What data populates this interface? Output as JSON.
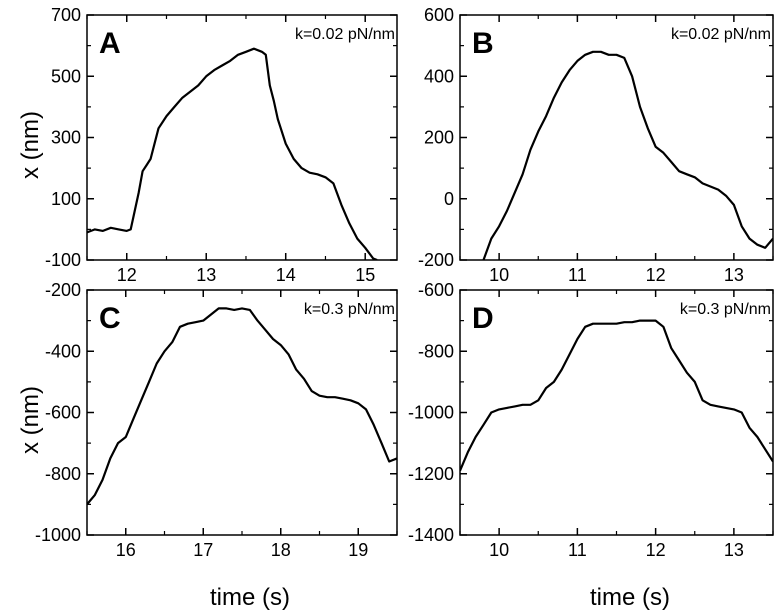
{
  "chart_data": [
    {
      "type": "line",
      "panel": "A",
      "annotation": "k=0.02 pN/nm",
      "ylabel": "x (nm)",
      "xlabel": "",
      "xlim": [
        11.5,
        15.4
      ],
      "ylim": [
        -100,
        700
      ],
      "xticks": [
        12,
        13,
        14,
        15
      ],
      "yticks": [
        -100,
        100,
        300,
        500,
        700
      ],
      "ytick_labels": [
        "-100",
        "100",
        "300",
        "500",
        "700"
      ],
      "series": [
        {
          "x": [
            11.5,
            11.6,
            11.7,
            11.8,
            11.9,
            12.0,
            12.05,
            12.1,
            12.15,
            12.2,
            12.25,
            12.3,
            12.4,
            12.5,
            12.6,
            12.7,
            12.8,
            12.9,
            13.0,
            13.1,
            13.2,
            13.3,
            13.4,
            13.5,
            13.6,
            13.7,
            13.75,
            13.8,
            13.85,
            13.9,
            14.0,
            14.1,
            14.2,
            14.3,
            14.4,
            14.5,
            14.6,
            14.7,
            14.8,
            14.9,
            15.0,
            15.1,
            15.15
          ],
          "y": [
            -10,
            0,
            -5,
            5,
            0,
            -5,
            0,
            60,
            120,
            190,
            210,
            230,
            330,
            370,
            400,
            430,
            450,
            470,
            500,
            520,
            535,
            550,
            570,
            580,
            590,
            580,
            570,
            470,
            420,
            360,
            280,
            230,
            200,
            185,
            180,
            170,
            150,
            80,
            20,
            -30,
            -60,
            -95,
            -100
          ]
        }
      ]
    },
    {
      "type": "line",
      "panel": "B",
      "annotation": "k=0.02 pN/nm",
      "ylabel": "",
      "xlabel": "",
      "xlim": [
        9.5,
        13.5
      ],
      "ylim": [
        -200,
        600
      ],
      "xticks": [
        10,
        11,
        12,
        13
      ],
      "yticks": [
        -200,
        0,
        200,
        400,
        600
      ],
      "ytick_labels": [
        "-200",
        "0",
        "200",
        "400",
        "600"
      ],
      "series": [
        {
          "x": [
            9.8,
            9.9,
            10.0,
            10.1,
            10.2,
            10.3,
            10.4,
            10.5,
            10.6,
            10.7,
            10.8,
            10.9,
            11.0,
            11.1,
            11.2,
            11.3,
            11.4,
            11.5,
            11.6,
            11.7,
            11.8,
            11.9,
            12.0,
            12.1,
            12.2,
            12.3,
            12.4,
            12.5,
            12.6,
            12.7,
            12.8,
            12.9,
            13.0,
            13.1,
            13.2,
            13.3,
            13.4,
            13.5
          ],
          "y": [
            -200,
            -130,
            -90,
            -40,
            20,
            80,
            160,
            220,
            270,
            330,
            380,
            420,
            450,
            470,
            480,
            480,
            470,
            470,
            460,
            400,
            300,
            230,
            170,
            150,
            120,
            90,
            80,
            70,
            50,
            40,
            30,
            10,
            -20,
            -90,
            -130,
            -150,
            -160,
            -130
          ]
        }
      ]
    },
    {
      "type": "line",
      "panel": "C",
      "annotation": "k=0.3 pN/nm",
      "ylabel": "x (nm)",
      "xlabel": "time (s)",
      "xlim": [
        15.5,
        19.5
      ],
      "ylim": [
        -1000,
        -200
      ],
      "xticks": [
        16,
        17,
        18,
        19
      ],
      "yticks": [
        -1000,
        -800,
        -600,
        -400,
        -200
      ],
      "ytick_labels": [
        "-1000",
        "-800",
        "-600",
        "-400",
        "-200"
      ],
      "series": [
        {
          "x": [
            15.5,
            15.6,
            15.7,
            15.8,
            15.9,
            16.0,
            16.1,
            16.2,
            16.3,
            16.4,
            16.5,
            16.6,
            16.7,
            16.8,
            16.9,
            17.0,
            17.1,
            17.2,
            17.3,
            17.4,
            17.5,
            17.6,
            17.7,
            17.8,
            17.9,
            18.0,
            18.1,
            18.2,
            18.3,
            18.4,
            18.5,
            18.6,
            18.7,
            18.8,
            18.9,
            19.0,
            19.1,
            19.2,
            19.3,
            19.4,
            19.5
          ],
          "y": [
            -900,
            -870,
            -820,
            -750,
            -700,
            -680,
            -620,
            -560,
            -500,
            -440,
            -400,
            -370,
            -320,
            -310,
            -305,
            -300,
            -280,
            -260,
            -260,
            -265,
            -260,
            -265,
            -300,
            -330,
            -360,
            -380,
            -410,
            -460,
            -490,
            -530,
            -545,
            -550,
            -550,
            -555,
            -560,
            -570,
            -590,
            -640,
            -700,
            -760,
            -750
          ]
        }
      ]
    },
    {
      "type": "line",
      "panel": "D",
      "annotation": "k=0.3 pN/nm",
      "ylabel": "",
      "xlabel": "time (s)",
      "xlim": [
        9.5,
        13.5
      ],
      "ylim": [
        -1400,
        -600
      ],
      "xticks": [
        10,
        11,
        12,
        13
      ],
      "yticks": [
        -1400,
        -1200,
        -1000,
        -800,
        -600
      ],
      "ytick_labels": [
        "-1400",
        "-1200",
        "-1000",
        "-800",
        "-600"
      ],
      "series": [
        {
          "x": [
            9.5,
            9.6,
            9.7,
            9.8,
            9.9,
            10.0,
            10.1,
            10.2,
            10.3,
            10.4,
            10.5,
            10.6,
            10.7,
            10.8,
            10.9,
            11.0,
            11.1,
            11.2,
            11.3,
            11.4,
            11.5,
            11.6,
            11.7,
            11.8,
            11.9,
            12.0,
            12.1,
            12.2,
            12.3,
            12.4,
            12.5,
            12.6,
            12.7,
            12.8,
            12.9,
            13.0,
            13.1,
            13.2,
            13.3,
            13.4,
            13.5
          ],
          "y": [
            -1190,
            -1130,
            -1080,
            -1040,
            -1000,
            -990,
            -985,
            -980,
            -975,
            -975,
            -960,
            -920,
            -900,
            -860,
            -810,
            -760,
            -720,
            -710,
            -710,
            -710,
            -710,
            -705,
            -705,
            -700,
            -700,
            -700,
            -720,
            -790,
            -830,
            -870,
            -900,
            -960,
            -975,
            -980,
            -985,
            -990,
            -1000,
            -1050,
            -1080,
            -1120,
            -1160
          ]
        }
      ]
    }
  ]
}
